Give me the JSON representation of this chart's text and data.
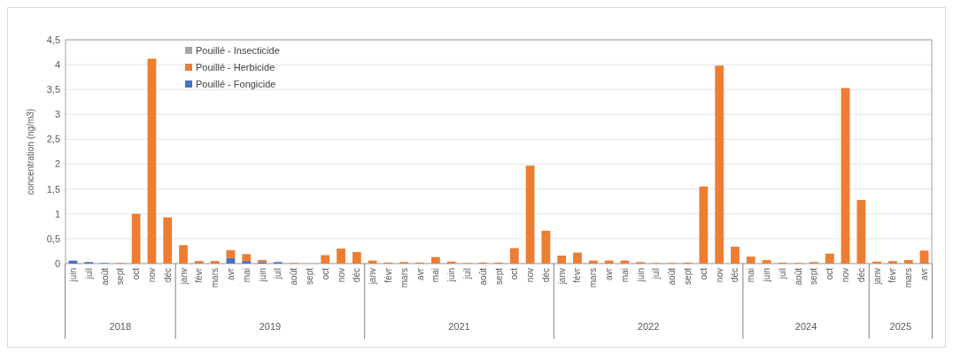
{
  "chart_data": {
    "type": "bar",
    "stacked": true,
    "ylabel": "concentration (ng/m3)",
    "categories": [
      "juin",
      "juil",
      "août",
      "sept",
      "oct",
      "nov",
      "déc",
      "janv",
      "févr",
      "mars",
      "avr",
      "mai",
      "juin",
      "juil",
      "août",
      "sept",
      "oct",
      "nov",
      "déc",
      "janv",
      "févr",
      "mars",
      "avr",
      "mai",
      "juin",
      "juil",
      "août",
      "sept",
      "oct",
      "nov",
      "déc",
      "janv",
      "févr",
      "mars",
      "avr",
      "mai",
      "juin",
      "juil",
      "août",
      "sept",
      "oct",
      "nov",
      "déc",
      "mai",
      "juin",
      "juil",
      "août",
      "sept",
      "oct",
      "nov",
      "déc",
      "janv",
      "févr",
      "mars",
      "avr"
    ],
    "series": [
      {
        "name": "Pouillé - Fongicide",
        "color": "#4472c4",
        "values": [
          0.06,
          0.03,
          0.01,
          0,
          0,
          0,
          0,
          0,
          0,
          0,
          0.11,
          0.05,
          0.03,
          0.03,
          0,
          0,
          0,
          0,
          0,
          0,
          0,
          0,
          0,
          0,
          0,
          0,
          0,
          0,
          0,
          0,
          0,
          0,
          0,
          0,
          0,
          0,
          0,
          0,
          0,
          0,
          0,
          0,
          0,
          0,
          0,
          0,
          0,
          0,
          0,
          0,
          0,
          0,
          0,
          0,
          0
        ]
      },
      {
        "name": "Pouillé - Herbicide",
        "color": "#ed7d31",
        "values": [
          0,
          0,
          0,
          0.01,
          1.0,
          4.12,
          0.93,
          0.37,
          0.05,
          0.05,
          0.16,
          0.14,
          0.04,
          0,
          0.01,
          0,
          0.17,
          0.3,
          0.23,
          0.06,
          0.02,
          0.03,
          0.02,
          0.13,
          0.04,
          0.01,
          0.02,
          0.02,
          0.31,
          1.97,
          0.66,
          0.16,
          0.22,
          0.06,
          0.06,
          0.06,
          0.03,
          0.01,
          0.01,
          0.02,
          1.55,
          3.98,
          0.34,
          0.14,
          0.07,
          0.02,
          0.01,
          0.03,
          0.2,
          3.53,
          1.28,
          0.04,
          0.05,
          0.07,
          0.26
        ]
      },
      {
        "name": "Pouillé - Insecticide",
        "color": "#a5a5a5",
        "values": [
          0,
          0,
          0,
          0,
          0,
          0,
          0,
          0,
          0,
          0,
          0,
          0,
          0,
          0,
          0,
          0,
          0,
          0,
          0,
          0,
          0,
          0,
          0,
          0,
          0,
          0,
          0,
          0,
          0,
          0,
          0,
          0,
          0,
          0,
          0,
          0,
          0,
          0,
          0,
          0,
          0,
          0,
          0,
          0,
          0,
          0,
          0,
          0,
          0,
          0,
          0,
          0,
          0,
          0,
          0
        ]
      }
    ],
    "ylim": [
      0,
      4.5
    ],
    "yticks": [
      {
        "value": 0,
        "label": "0"
      },
      {
        "value": 0.5,
        "label": "0,5"
      },
      {
        "value": 1,
        "label": "1"
      },
      {
        "value": 1.5,
        "label": "1,5"
      },
      {
        "value": 2,
        "label": "2"
      },
      {
        "value": 2.5,
        "label": "2,5"
      },
      {
        "value": 3,
        "label": "3"
      },
      {
        "value": 3.5,
        "label": "3,5"
      },
      {
        "value": 4,
        "label": "4"
      },
      {
        "value": 4.5,
        "label": "4,5"
      }
    ],
    "grid": "y",
    "legend": "top left",
    "annotations": [
      "2018",
      "2019",
      "2021",
      "2022",
      "2024",
      "2025"
    ]
  }
}
